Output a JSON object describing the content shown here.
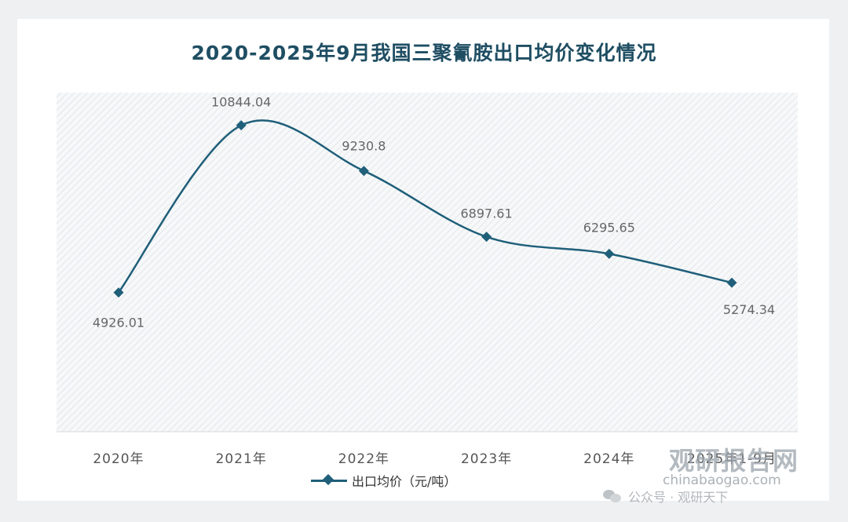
{
  "title": "2020-2025年9月我国三聚氰胺出口均价变化情况",
  "colors": {
    "line": "#1f5f7a",
    "title": "#1f4e63",
    "plot_background_hatch": "#e3e6e9"
  },
  "legend": {
    "label": "出口均价（元/吨）",
    "placement": "bottom"
  },
  "watermark": {
    "brand": "观研报告网",
    "site": "chinabaogao.com",
    "account": "公众号 · 观研天下",
    "icon": "wechat-icon"
  },
  "chart_data": {
    "type": "line",
    "title": "2020-2025年9月我国三聚氰胺出口均价变化情况",
    "categories": [
      "2020年",
      "2021年",
      "2022年",
      "2023年",
      "2024年",
      "2025年1-9月"
    ],
    "series": [
      {
        "name": "出口均价（元/吨）",
        "values": [
          4926.01,
          10844.04,
          9230.8,
          6897.61,
          6295.65,
          5274.34
        ],
        "labels": [
          "4926.01",
          "10844.04",
          "9230.8",
          "6897.61",
          "6295.65",
          "5274.34"
        ]
      }
    ],
    "smooth": true,
    "marker": "diamond",
    "ylim": [
      0,
      12000
    ],
    "y_axis_visible": false,
    "grid": false,
    "xlabel": "",
    "ylabel": ""
  }
}
